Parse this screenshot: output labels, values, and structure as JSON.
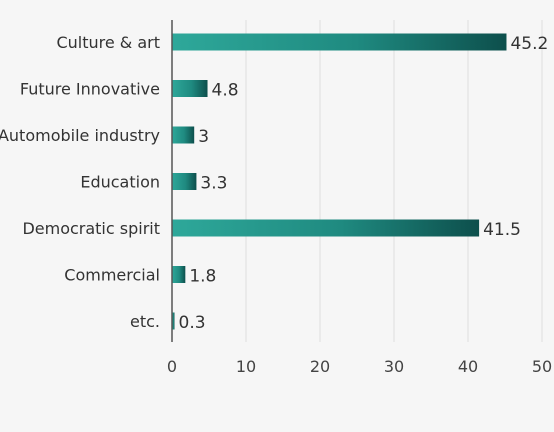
{
  "chart_data": {
    "type": "bar",
    "orientation": "horizontal",
    "categories": [
      "Culture & art",
      "Future Innovative",
      "Automobile industry",
      "Education",
      "Democratic spirit",
      "Commercial",
      "etc."
    ],
    "values": [
      45.2,
      4.8,
      3,
      3.3,
      41.5,
      1.8,
      0.3
    ],
    "value_labels": [
      "45.2",
      "4.8",
      "3",
      "3.3",
      "41.5",
      "1.8",
      "0.3"
    ],
    "title": "",
    "xlabel": "",
    "ylabel": "",
    "xlim": [
      0,
      50
    ],
    "x_ticks": [
      "0",
      "10",
      "20",
      "30",
      "40",
      "50"
    ],
    "grid": true,
    "legend": "none",
    "colors": {
      "bar_dark": "#0d4f4c",
      "bar_mid": "#1f8a80",
      "bar_light": "#2ea89a",
      "background": "#f6f6f6",
      "grid": "#dddddd"
    }
  }
}
